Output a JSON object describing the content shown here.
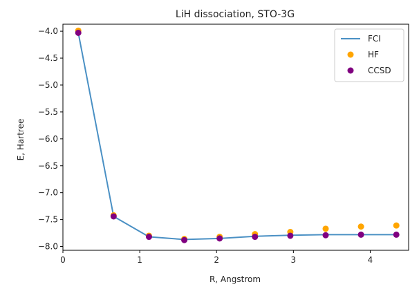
{
  "chart_data": {
    "type": "line",
    "title": "LiH dissociation, STO-3G",
    "xlabel": "R, Angstrom",
    "ylabel": "E, Hartree",
    "xlim": [
      0,
      4.5
    ],
    "ylim": [
      -8.07,
      -3.87
    ],
    "xticks": [
      0,
      1,
      2,
      3,
      4
    ],
    "yticks": [
      -4.0,
      -4.5,
      -5.0,
      -5.5,
      -6.0,
      -6.5,
      -7.0,
      -7.5,
      -8.0
    ],
    "xtick_labels": [
      "0",
      "1",
      "2",
      "3",
      "4"
    ],
    "ytick_labels": [
      "−4.0",
      "−4.5",
      "−5.0",
      "−5.5",
      "−6.0",
      "−6.5",
      "−7.0",
      "−7.5",
      "−8.0"
    ],
    "grid": false,
    "legend_position": "top-right",
    "x": [
      0.2,
      0.66,
      1.12,
      1.58,
      2.04,
      2.5,
      2.96,
      3.42,
      3.88,
      4.34
    ],
    "series": [
      {
        "name": "FCI",
        "kind": "line",
        "color": "#4a90c4",
        "values": [
          -4.03,
          -7.44,
          -7.82,
          -7.87,
          -7.85,
          -7.81,
          -7.79,
          -7.78,
          -7.78,
          -7.78
        ]
      },
      {
        "name": "HF",
        "kind": "scatter",
        "color": "#ffa500",
        "values": [
          -3.99,
          -7.42,
          -7.8,
          -7.86,
          -7.82,
          -7.77,
          -7.73,
          -7.67,
          -7.63,
          -7.61
        ]
      },
      {
        "name": "CCSD",
        "kind": "scatter",
        "color": "#800080",
        "values": [
          -4.03,
          -7.44,
          -7.82,
          -7.88,
          -7.85,
          -7.82,
          -7.8,
          -7.79,
          -7.78,
          -7.78
        ]
      }
    ]
  }
}
